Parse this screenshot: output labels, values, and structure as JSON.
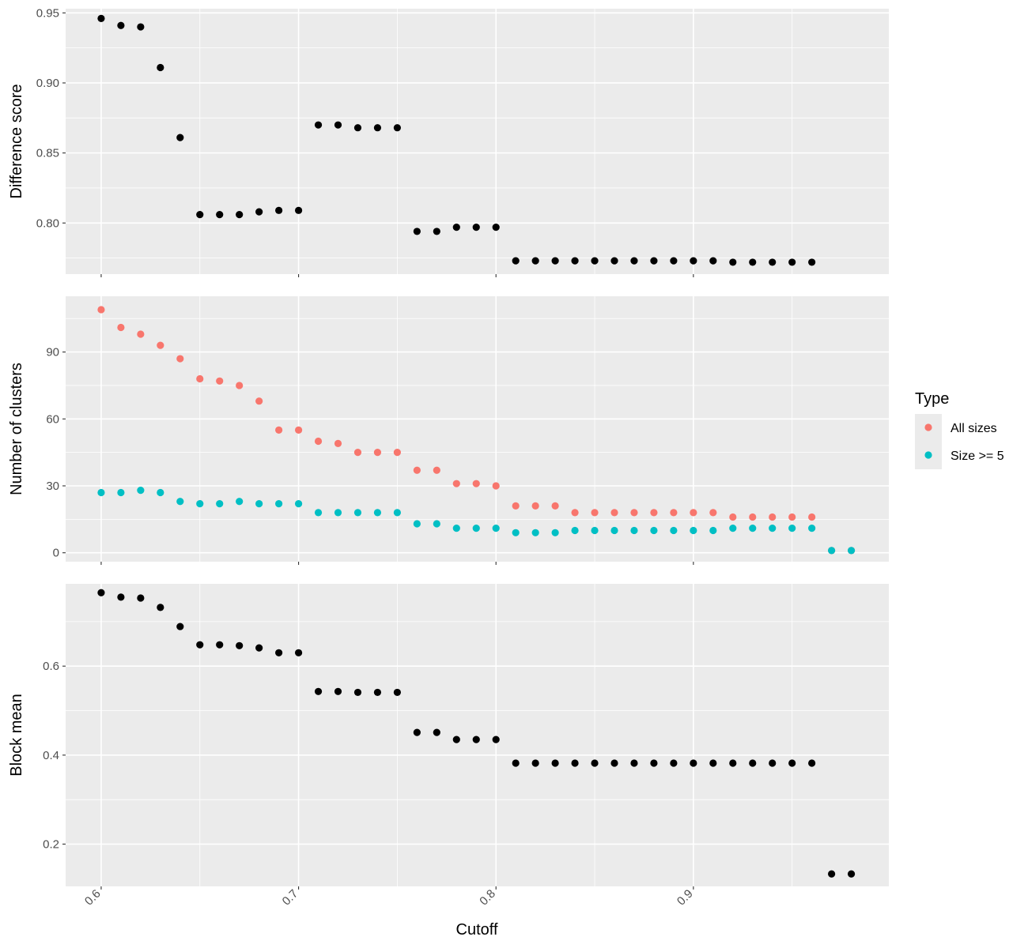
{
  "chart_data": {
    "type": "scatter",
    "x_axis": {
      "label": "Cutoff",
      "range": [
        0.582,
        0.999
      ],
      "ticks": [
        0.6,
        0.7,
        0.8,
        0.9
      ],
      "tick_labels": [
        "0.6",
        "0.7",
        "0.8",
        "0.9"
      ]
    },
    "legend": {
      "title": "Type",
      "placement": "right",
      "entries": [
        {
          "label": "All sizes",
          "color": "#F8766D"
        },
        {
          "label": "Size >= 5",
          "color": "#00BFC4"
        }
      ]
    },
    "background_color": "#EBEBEB",
    "grid": true,
    "panels": [
      {
        "ylabel": "Difference score",
        "ylim": [
          0.7635,
          0.953
        ],
        "yticks": [
          0.8,
          0.85,
          0.9,
          0.95
        ],
        "ytick_labels": [
          "0.80",
          "0.85",
          "0.90",
          "0.95"
        ],
        "series": [
          {
            "color": "#000000",
            "x": [
              0.6,
              0.61,
              0.62,
              0.63,
              0.64,
              0.65,
              0.66,
              0.67,
              0.68,
              0.69,
              0.7,
              0.71,
              0.72,
              0.73,
              0.74,
              0.75,
              0.76,
              0.77,
              0.78,
              0.79,
              0.8,
              0.81,
              0.82,
              0.83,
              0.84,
              0.85,
              0.86,
              0.87,
              0.88,
              0.89,
              0.9,
              0.91,
              0.92,
              0.93,
              0.94,
              0.95,
              0.96
            ],
            "y": [
              0.946,
              0.941,
              0.94,
              0.911,
              0.861,
              0.806,
              0.806,
              0.806,
              0.808,
              0.809,
              0.809,
              0.87,
              0.87,
              0.868,
              0.868,
              0.868,
              0.794,
              0.794,
              0.797,
              0.797,
              0.797,
              0.773,
              0.773,
              0.773,
              0.773,
              0.773,
              0.773,
              0.773,
              0.773,
              0.773,
              0.773,
              0.773,
              0.772,
              0.772,
              0.772,
              0.772,
              0.772
            ]
          }
        ]
      },
      {
        "ylabel": "Number of clusters",
        "ylim": [
          -4,
          115
        ],
        "yticks": [
          0,
          30,
          60,
          90
        ],
        "ytick_labels": [
          "0",
          "30",
          "60",
          "90"
        ],
        "series": [
          {
            "name": "All sizes",
            "color": "#F8766D",
            "x": [
              0.6,
              0.61,
              0.62,
              0.63,
              0.64,
              0.65,
              0.66,
              0.67,
              0.68,
              0.69,
              0.7,
              0.71,
              0.72,
              0.73,
              0.74,
              0.75,
              0.76,
              0.77,
              0.78,
              0.79,
              0.8,
              0.81,
              0.82,
              0.83,
              0.84,
              0.85,
              0.86,
              0.87,
              0.88,
              0.89,
              0.9,
              0.91,
              0.92,
              0.93,
              0.94,
              0.95,
              0.96,
              0.97,
              0.98
            ],
            "y": [
              109,
              101,
              98,
              93,
              87,
              78,
              77,
              75,
              68,
              55,
              55,
              50,
              49,
              45,
              45,
              45,
              37,
              37,
              31,
              31,
              30,
              21,
              21,
              21,
              18,
              18,
              18,
              18,
              18,
              18,
              18,
              18,
              16,
              16,
              16,
              16,
              16,
              1,
              1
            ]
          },
          {
            "name": "Size >= 5",
            "color": "#00BFC4",
            "x": [
              0.6,
              0.61,
              0.62,
              0.63,
              0.64,
              0.65,
              0.66,
              0.67,
              0.68,
              0.69,
              0.7,
              0.71,
              0.72,
              0.73,
              0.74,
              0.75,
              0.76,
              0.77,
              0.78,
              0.79,
              0.8,
              0.81,
              0.82,
              0.83,
              0.84,
              0.85,
              0.86,
              0.87,
              0.88,
              0.89,
              0.9,
              0.91,
              0.92,
              0.93,
              0.94,
              0.95,
              0.96,
              0.97,
              0.98
            ],
            "y": [
              27,
              27,
              28,
              27,
              23,
              22,
              22,
              23,
              22,
              22,
              22,
              18,
              18,
              18,
              18,
              18,
              13,
              13,
              11,
              11,
              11,
              9,
              9,
              9,
              10,
              10,
              10,
              10,
              10,
              10,
              10,
              10,
              11,
              11,
              11,
              11,
              11,
              1,
              1
            ]
          }
        ]
      },
      {
        "ylabel": "Block mean",
        "ylim": [
          0.105,
          0.785
        ],
        "yticks": [
          0.2,
          0.4,
          0.6
        ],
        "ytick_labels": [
          "0.2",
          "0.4",
          "0.6"
        ],
        "series": [
          {
            "color": "#000000",
            "x": [
              0.6,
              0.61,
              0.62,
              0.63,
              0.64,
              0.65,
              0.66,
              0.67,
              0.68,
              0.69,
              0.7,
              0.71,
              0.72,
              0.73,
              0.74,
              0.75,
              0.76,
              0.77,
              0.78,
              0.79,
              0.8,
              0.81,
              0.82,
              0.83,
              0.84,
              0.85,
              0.86,
              0.87,
              0.88,
              0.89,
              0.9,
              0.91,
              0.92,
              0.93,
              0.94,
              0.95,
              0.96,
              0.97,
              0.98
            ],
            "y": [
              0.765,
              0.755,
              0.753,
              0.732,
              0.689,
              0.648,
              0.648,
              0.646,
              0.641,
              0.63,
              0.63,
              0.543,
              0.543,
              0.541,
              0.541,
              0.541,
              0.451,
              0.451,
              0.435,
              0.435,
              0.435,
              0.382,
              0.382,
              0.382,
              0.382,
              0.382,
              0.382,
              0.382,
              0.382,
              0.382,
              0.382,
              0.382,
              0.382,
              0.382,
              0.382,
              0.382,
              0.382,
              0.133,
              0.133
            ]
          }
        ]
      }
    ]
  }
}
